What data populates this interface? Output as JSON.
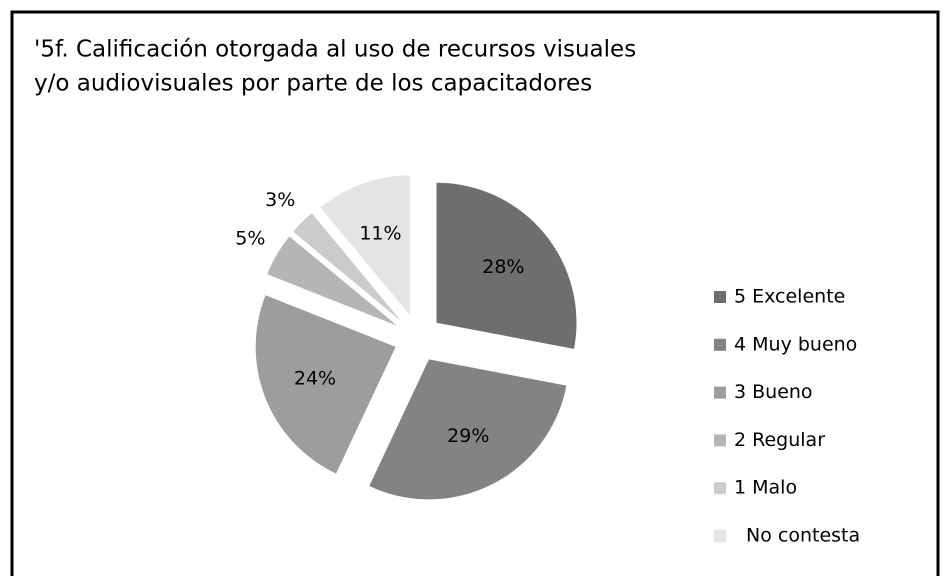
{
  "chart_data": {
    "type": "pie",
    "title": [
      "'5f. Calificación otorgada al uso de recursos visuales",
      "y/o audiovisuales por parte de los capacitadores"
    ],
    "categories": [
      "5 Excelente",
      "4 Muy bueno",
      "3 Bueno",
      "2 Regular",
      "1 Malo",
      "No contesta"
    ],
    "values": [
      28,
      29,
      24,
      5,
      3,
      11
    ],
    "value_labels": [
      "28%",
      "29%",
      "24%",
      "5%",
      "3%",
      "11%"
    ],
    "colors": [
      "#6e6e6e",
      "#838383",
      "#9d9d9d",
      "#b5b5b5",
      "#cbcbcb",
      "#e4e4e4"
    ],
    "legend": "right"
  }
}
